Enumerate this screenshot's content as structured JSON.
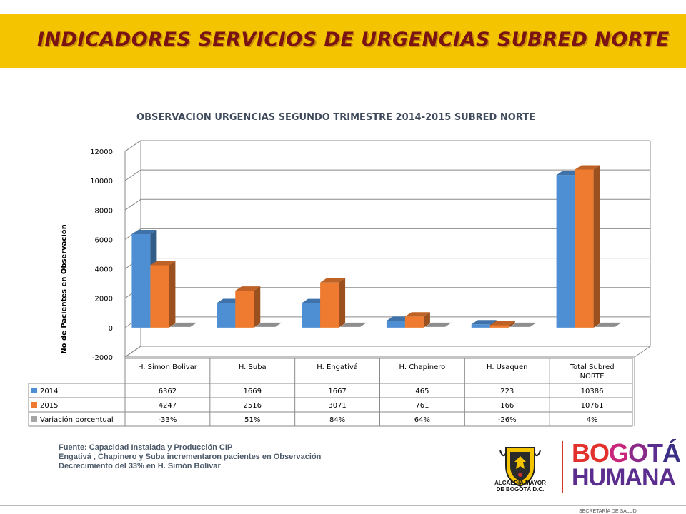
{
  "banner": {
    "title": "INDICADORES SERVICIOS DE URGENCIAS SUBRED NORTE",
    "bg_color": "#f4c400",
    "title_color": "#7a1414"
  },
  "chart_data": {
    "type": "bar",
    "title": "OBSERVACION URGENCIAS SEGUNDO TRIMESTRE 2014-2015 SUBRED NORTE",
    "ylabel": "No de Pacientes en Observación",
    "xlabel": "",
    "ylim": [
      -2000,
      12000
    ],
    "yticks": [
      12000,
      10000,
      8000,
      6000,
      4000,
      2000,
      0,
      -2000
    ],
    "grid": true,
    "categories": [
      [
        "H. Simon Bolivar"
      ],
      [
        "H. Suba"
      ],
      [
        "H. Engativá"
      ],
      [
        "H. Chapinero"
      ],
      [
        "H. Usaquen"
      ],
      [
        "Total Subred",
        "NORTE"
      ]
    ],
    "series": [
      {
        "name": "2014",
        "values": [
          6362,
          1669,
          1667,
          465,
          223,
          10386
        ],
        "labels": [
          "6362",
          "1669",
          "1667",
          "465",
          "223",
          "10386"
        ],
        "color": "#4e8fd3"
      },
      {
        "name": "2015",
        "values": [
          4247,
          2516,
          3071,
          761,
          166,
          10761
        ],
        "labels": [
          "4247",
          "2516",
          "3071",
          "761",
          "166",
          "10761"
        ],
        "color": "#ee7b30"
      },
      {
        "name": "Variación porcentual",
        "values": [
          -0.33,
          0.51,
          0.84,
          0.64,
          -0.26,
          0.04
        ],
        "labels": [
          "-33%",
          "51%",
          "84%",
          "64%",
          "-26%",
          "4%"
        ],
        "color": "#a5a5a5"
      }
    ],
    "legend": "data-table"
  },
  "footer": {
    "lines": [
      "Fuente: Capacidad Instalada y Producción  CIP",
      "Engativá , Chapinero y Suba incrementaron pacientes en Observación",
      "Decrecimiento del 33% en H. Simón Bolívar"
    ]
  },
  "logos": {
    "alcaldia": [
      "ALCALDÍA MAYOR",
      "DE BOGOTÁ D.C."
    ],
    "bogota_letters": [
      {
        "ch": "B",
        "color": "#e2312d"
      },
      {
        "ch": "O",
        "color": "#e2312d"
      },
      {
        "ch": "G",
        "color": "#c7267b"
      },
      {
        "ch": "O",
        "color": "#8c2a8a"
      },
      {
        "ch": "T",
        "color": "#5b2d8e"
      },
      {
        "ch": "Á",
        "color": "#3a2e85"
      }
    ],
    "humana": "HUMANA"
  },
  "corner": "SECRETARÍA DE SALUD"
}
